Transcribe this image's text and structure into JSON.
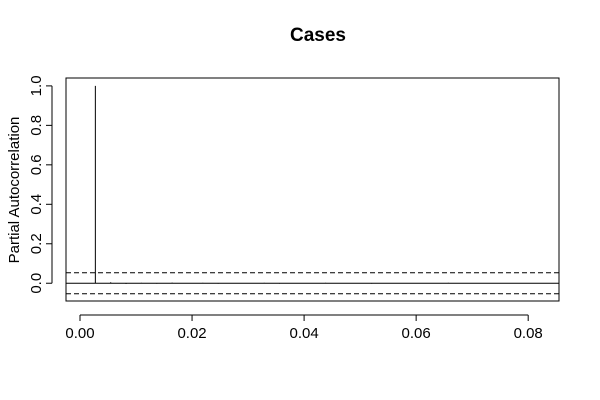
{
  "chart_data": {
    "type": "bar",
    "title": "Cases",
    "xlabel": "",
    "ylabel": "Partial Autocorrelation",
    "xlim": [
      -0.0025,
      0.0855
    ],
    "ylim": [
      -0.09,
      1.04
    ],
    "x_ticks": [
      0.0,
      0.02,
      0.04,
      0.06,
      0.08
    ],
    "x_tick_labels": [
      "0.00",
      "0.02",
      "0.04",
      "0.06",
      "0.08"
    ],
    "y_ticks": [
      0.0,
      0.2,
      0.4,
      0.6,
      0.8,
      1.0
    ],
    "y_tick_labels": [
      "0.0",
      "0.2",
      "0.4",
      "0.6",
      "0.8",
      "1.0"
    ],
    "lags": [
      0.00274,
      0.00548,
      0.00822,
      0.01096,
      0.0137,
      0.01644,
      0.01918,
      0.02192,
      0.02466,
      0.0274,
      0.03014,
      0.03288,
      0.03562,
      0.03836,
      0.0411,
      0.04384,
      0.04658,
      0.04932,
      0.05206,
      0.0548,
      0.05753,
      0.06027,
      0.06301,
      0.06575,
      0.06849,
      0.07123,
      0.07397,
      0.07671,
      0.07945,
      0.08219
    ],
    "values": [
      1.0,
      0.005,
      -0.003,
      0.002,
      -0.002,
      0.003,
      -0.001,
      0.002,
      -0.002,
      0.001,
      -0.001,
      0.002,
      -0.002,
      0.001,
      -0.001,
      0.002,
      -0.001,
      0.001,
      -0.002,
      0.001,
      -0.001,
      0.001,
      -0.001,
      0.002,
      -0.001,
      0.001,
      -0.001,
      0.001,
      -0.001,
      0.001
    ],
    "confidence_bounds": [
      -0.053,
      0.053
    ],
    "zero_line": true,
    "grid": false
  }
}
